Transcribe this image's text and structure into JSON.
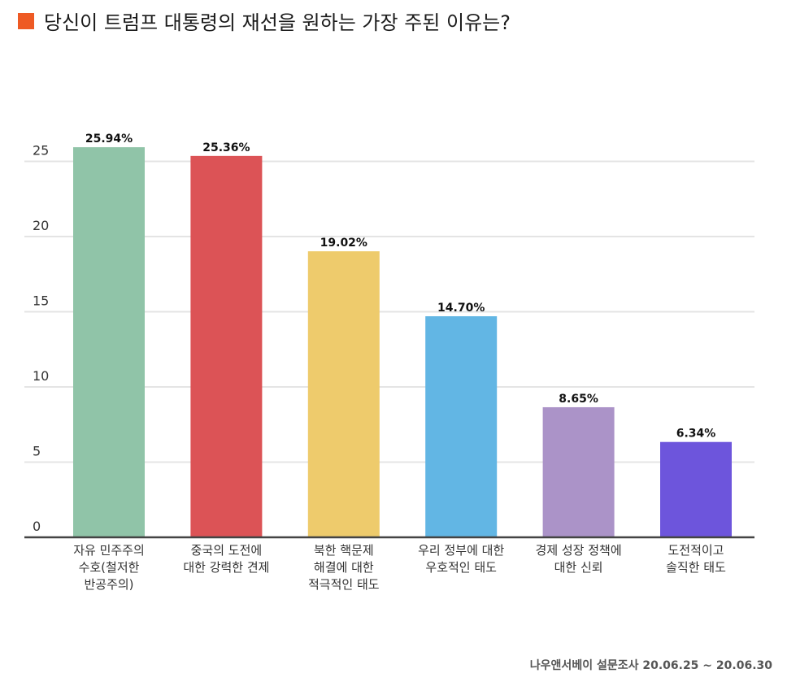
{
  "title": "당신이 트럼프 대통령의 재선을 원하는 가장 주된 이유는?",
  "source_note": "나우앤서베이 설문조사 20.06.25 ~ 20.06.30",
  "colors": {
    "title_marker": "#ee5a24",
    "axis": "#444444",
    "grid": "#e4e4e4",
    "tick_text": "#333333",
    "label_text": "#333333",
    "value_text": "#111111"
  },
  "chart_data": {
    "type": "bar",
    "title": "",
    "xlabel": "",
    "ylabel": "",
    "ylim": [
      0,
      25
    ],
    "yticks": [
      0,
      5,
      10,
      15,
      20,
      25
    ],
    "grid": true,
    "categories": [
      [
        "자유 민주주의",
        "수호(철저한",
        "반공주의)"
      ],
      [
        "중국의 도전에",
        "대한 강력한 견제"
      ],
      [
        "북한 핵문제",
        "해결에 대한",
        "적극적인 태도"
      ],
      [
        "우리 정부에 대한",
        "우호적인 태도"
      ],
      [
        "경제 성장 정책에",
        "대한 신뢰"
      ],
      [
        "도전적이고",
        "솔직한 태도"
      ]
    ],
    "values": [
      25.94,
      25.36,
      19.02,
      14.7,
      8.65,
      6.34
    ],
    "value_labels": [
      "25.94%",
      "25.36%",
      "19.02%",
      "14.70%",
      "8.65%",
      "6.34%"
    ],
    "bar_colors": [
      "#90c4a8",
      "#dc5356",
      "#eecb6c",
      "#62b6e4",
      "#ab93c8",
      "#6d55dc"
    ]
  }
}
